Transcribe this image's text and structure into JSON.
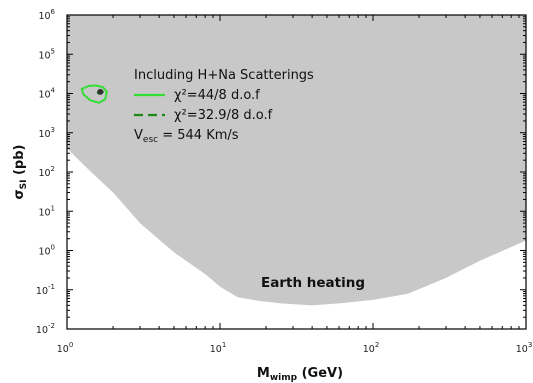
{
  "chart_data": {
    "type": "area",
    "xlabel": {
      "main": "M",
      "sub": "wimp",
      "unit": " (GeV)"
    },
    "ylabel": {
      "main": "σ",
      "sub": "SI",
      "unit": " (pb)"
    },
    "xscale": "log",
    "yscale": "log",
    "xlim": [
      1,
      1000
    ],
    "ylim": [
      0.01,
      1000000
    ],
    "x_ticks": [
      {
        "base": "10",
        "exp": "0"
      },
      {
        "base": "10",
        "exp": "1"
      },
      {
        "base": "10",
        "exp": "2"
      },
      {
        "base": "10",
        "exp": "3"
      }
    ],
    "y_ticks": [
      {
        "base": "10",
        "exp": "-2"
      },
      {
        "base": "10",
        "exp": "-1"
      },
      {
        "base": "10",
        "exp": "0"
      },
      {
        "base": "10",
        "exp": "1"
      },
      {
        "base": "10",
        "exp": "2"
      },
      {
        "base": "10",
        "exp": "3"
      },
      {
        "base": "10",
        "exp": "4"
      },
      {
        "base": "10",
        "exp": "5"
      },
      {
        "base": "10",
        "exp": "6"
      }
    ],
    "grid": false,
    "excluded_region": {
      "label": "Earth heating",
      "color": "#c8c8c8",
      "lower_boundary": [
        [
          1,
          400
        ],
        [
          1.4,
          110
        ],
        [
          2,
          30
        ],
        [
          3,
          5
        ],
        [
          5,
          0.9
        ],
        [
          8,
          0.25
        ],
        [
          10,
          0.12
        ],
        [
          13,
          0.065
        ],
        [
          18,
          0.052
        ],
        [
          25,
          0.045
        ],
        [
          40,
          0.04
        ],
        [
          60,
          0.045
        ],
        [
          100,
          0.055
        ],
        [
          170,
          0.08
        ],
        [
          300,
          0.2
        ],
        [
          500,
          0.55
        ],
        [
          1000,
          1.8
        ]
      ]
    },
    "series": [
      {
        "name": "χ²=44/8 d.o.f",
        "style": "solid",
        "color": "#33dd33",
        "contour": [
          [
            1.25,
            13000
          ],
          [
            1.38,
            15500
          ],
          [
            1.55,
            16000
          ],
          [
            1.72,
            14500
          ],
          [
            1.82,
            11000
          ],
          [
            1.78,
            7200
          ],
          [
            1.62,
            5800
          ],
          [
            1.42,
            6700
          ],
          [
            1.28,
            9500
          ]
        ]
      },
      {
        "name": "χ²=32.9/8 d.o.f",
        "style": "dashed",
        "color": "#1a8a1a",
        "contour": [
          [
            1.58,
            11000
          ],
          [
            1.65,
            11800
          ],
          [
            1.72,
            11000
          ],
          [
            1.67,
            10000
          ],
          [
            1.6,
            10200
          ]
        ]
      }
    ],
    "best_fit_point": {
      "x": 1.65,
      "y": 11000,
      "color": "#333333"
    },
    "legend": {
      "position": "top-left",
      "title": "Including H+Na Scatterings",
      "note": {
        "main": "V",
        "sub": "esc",
        "rest": " = 544 Km/s"
      }
    }
  }
}
